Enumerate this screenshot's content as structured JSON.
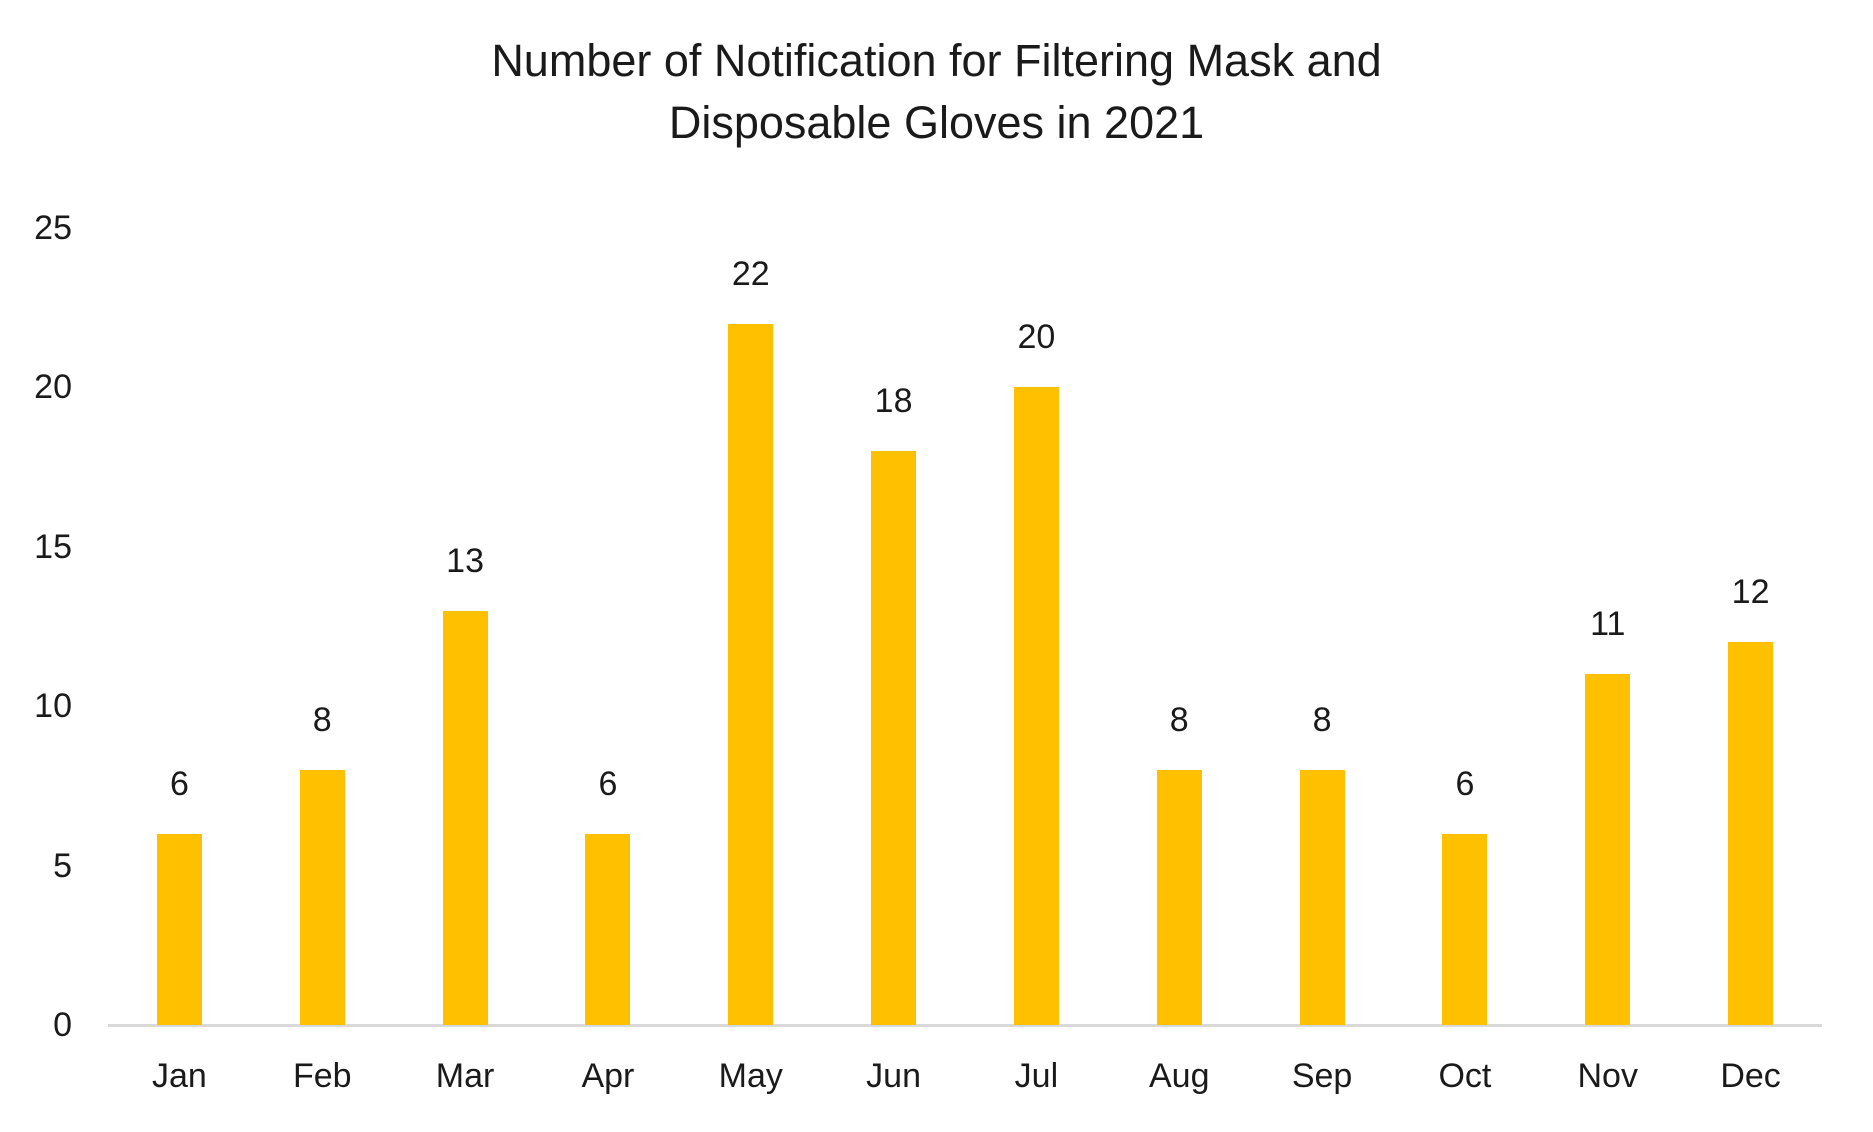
{
  "chart_data": {
    "type": "bar",
    "title": "Number of Notification for Filtering Mask and Disposable Gloves in 2021",
    "title_lines": [
      "Number of Notification for Filtering Mask and",
      "Disposable Gloves in 2021"
    ],
    "categories": [
      "Jan",
      "Feb",
      "Mar",
      "Apr",
      "May",
      "Jun",
      "Jul",
      "Aug",
      "Sep",
      "Oct",
      "Nov",
      "Dec"
    ],
    "values": [
      6,
      8,
      13,
      6,
      22,
      18,
      20,
      8,
      8,
      6,
      11,
      12
    ],
    "data_labels": [
      "6",
      "8",
      "13",
      "6",
      "22",
      "18",
      "20",
      "8",
      "8",
      "6",
      "11",
      "12"
    ],
    "xlabel": "",
    "ylabel": "",
    "yticks": [
      0,
      5,
      10,
      15,
      20,
      25
    ],
    "ylim": [
      0,
      25
    ],
    "grid": false,
    "legend_position": "none",
    "data_labels_shown": true,
    "colors": {
      "bar": "#FFC000",
      "axis_line": "#D9D9D9",
      "text": "#1a1a1a",
      "background": "#ffffff"
    }
  }
}
